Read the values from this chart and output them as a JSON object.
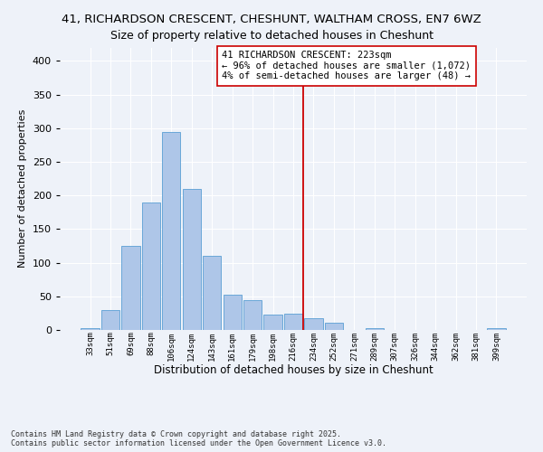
{
  "title1": "41, RICHARDSON CRESCENT, CHESHUNT, WALTHAM CROSS, EN7 6WZ",
  "title2": "Size of property relative to detached houses in Cheshunt",
  "xlabel": "Distribution of detached houses by size in Cheshunt",
  "ylabel": "Number of detached properties",
  "categories": [
    "33sqm",
    "51sqm",
    "69sqm",
    "88sqm",
    "106sqm",
    "124sqm",
    "143sqm",
    "161sqm",
    "179sqm",
    "198sqm",
    "216sqm",
    "234sqm",
    "252sqm",
    "271sqm",
    "289sqm",
    "307sqm",
    "326sqm",
    "344sqm",
    "362sqm",
    "381sqm",
    "399sqm"
  ],
  "values": [
    3,
    30,
    125,
    190,
    295,
    210,
    110,
    52,
    44,
    23,
    24,
    17,
    11,
    0,
    3,
    0,
    0,
    0,
    0,
    0,
    3
  ],
  "bar_color": "#aec6e8",
  "bar_edge_color": "#5a9fd4",
  "vline_x": 10.5,
  "vline_color": "#cc0000",
  "annotation_line1": "41 RICHARDSON CRESCENT: 223sqm",
  "annotation_line2": "← 96% of detached houses are smaller (1,072)",
  "annotation_line3": "4% of semi-detached houses are larger (48) →",
  "ylim": [
    0,
    420
  ],
  "yticks": [
    0,
    50,
    100,
    150,
    200,
    250,
    300,
    350,
    400
  ],
  "bg_color": "#eef2f9",
  "footer_text": "Contains HM Land Registry data © Crown copyright and database right 2025.\nContains public sector information licensed under the Open Government Licence v3.0.",
  "title_fontsize": 9.5,
  "subtitle_fontsize": 9,
  "ylabel_fontsize": 8,
  "xlabel_fontsize": 8.5,
  "annotation_fontsize": 7.5,
  "tick_fontsize": 6.5,
  "ytick_fontsize": 8
}
